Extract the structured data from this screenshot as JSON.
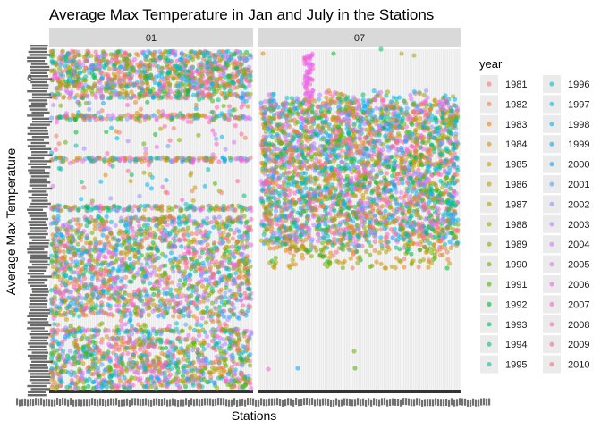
{
  "chart_data": {
    "type": "scatter",
    "title": "Average Max Temperature in Jan and July in the Stations",
    "xlabel": "Stations",
    "ylabel": "Average Max Temperature",
    "facets": [
      "01",
      "07"
    ],
    "legend": {
      "title": "year",
      "position": "right",
      "years": [
        "1981",
        "1982",
        "1983",
        "1984",
        "1985",
        "1986",
        "1987",
        "1988",
        "1989",
        "1990",
        "1991",
        "1992",
        "1993",
        "1994",
        "1995",
        "1996",
        "1997",
        "1998",
        "1999",
        "2000",
        "2001",
        "2002",
        "2003",
        "2004",
        "2005",
        "2006",
        "2007",
        "2008",
        "2009",
        "2010"
      ],
      "colors": [
        "#F8766D",
        "#F07E4E",
        "#E7861B",
        "#DB8E00",
        "#CE9700",
        "#BF9F00",
        "#AEA200",
        "#9BA800",
        "#84AD00",
        "#6BB100",
        "#4BB500",
        "#00B929",
        "#00BD60",
        "#00BF84",
        "#00C0A4",
        "#00C0C0",
        "#00BCD8",
        "#00B6EB",
        "#00ADF9",
        "#00A5FF",
        "#619CFF",
        "#8F91FF",
        "#B385FF",
        "#CF78FF",
        "#E36EF6",
        "#F066E4",
        "#F863CF",
        "#FD61B7",
        "#FF619E",
        "#FF6781"
      ]
    },
    "y_tick_label": "6",
    "grid": true
  }
}
